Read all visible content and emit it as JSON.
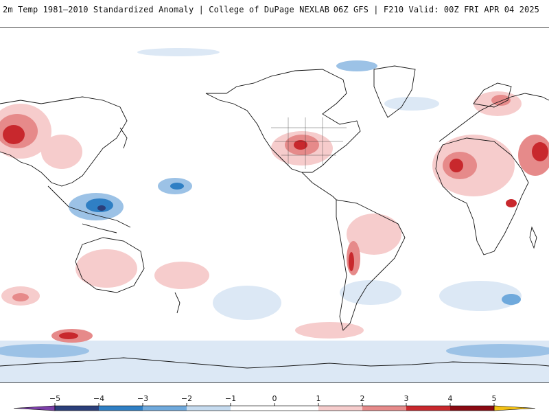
{
  "header": {
    "left_title": "2m Temp 1981–2010 Standardized Anomaly | College of DuPage NEXLAB",
    "right_title": "06Z GFS | F210 Valid: 00Z FRI APR 04 2025"
  },
  "map": {
    "projection": "cylindrical, centered on Pacific",
    "background": "#ffffff",
    "border_color": "#111111"
  },
  "colorbar": {
    "ticks": [
      {
        "value": -5,
        "label": "−5"
      },
      {
        "value": -4,
        "label": "−4"
      },
      {
        "value": -3,
        "label": "−3"
      },
      {
        "value": -2,
        "label": "−2"
      },
      {
        "value": -1,
        "label": "−1"
      },
      {
        "value": 0,
        "label": "0"
      },
      {
        "value": 1,
        "label": "1"
      },
      {
        "value": 2,
        "label": "2"
      },
      {
        "value": 3,
        "label": "3"
      },
      {
        "value": 4,
        "label": "4"
      },
      {
        "value": 5,
        "label": "5"
      }
    ],
    "bins": [
      {
        "from": -5,
        "to": -4,
        "color": "#2b3f7a"
      },
      {
        "from": -4,
        "to": -3,
        "color": "#2f7fc4"
      },
      {
        "from": -3,
        "to": -2,
        "color": "#6fa9dc"
      },
      {
        "from": -2,
        "to": -1,
        "color": "#c6dbef"
      },
      {
        "from": -1,
        "to": 0,
        "color": "#ffffff"
      },
      {
        "from": 0,
        "to": 1,
        "color": "#ffffff"
      },
      {
        "from": 1,
        "to": 2,
        "color": "#f6cccc"
      },
      {
        "from": 2,
        "to": 3,
        "color": "#e68a8a"
      },
      {
        "from": 3,
        "to": 4,
        "color": "#c8282d"
      },
      {
        "from": 4,
        "to": 5,
        "color": "#8a0a12"
      }
    ],
    "under_color": "#7b3fa8",
    "over_color": "#f2c014"
  }
}
